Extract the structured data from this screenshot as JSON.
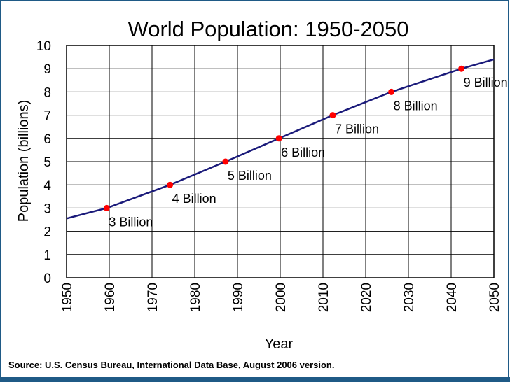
{
  "source_note": "Source: U.S. Census Bureau, International Data Base, August 2006 version.",
  "colors": {
    "line": "#1a1a7a",
    "marker": "#ff0000",
    "grid": "#000000",
    "frame": "#1f5a86"
  },
  "chart_data": {
    "type": "line",
    "title": "World Population: 1950-2050",
    "xlabel": "Year",
    "ylabel": "Population (billions)",
    "xlim": [
      1950,
      2050
    ],
    "ylim": [
      0,
      10
    ],
    "x_ticks": [
      1950,
      1960,
      1970,
      1980,
      1990,
      2000,
      2010,
      2020,
      2030,
      2040,
      2050
    ],
    "y_ticks": [
      0,
      1,
      2,
      3,
      4,
      5,
      6,
      7,
      8,
      9,
      10
    ],
    "grid": true,
    "series": [
      {
        "x": [
          1950,
          1959.4,
          1974.2,
          1987.2,
          1999.7,
          2012.3,
          2026.0,
          2042.4,
          2050
        ],
        "y": [
          2.55,
          3,
          4,
          5,
          6,
          7,
          8,
          9,
          9.4
        ]
      }
    ],
    "milestones": [
      {
        "x": 1959.4,
        "y": 3,
        "label": "3 Billion"
      },
      {
        "x": 1974.2,
        "y": 4,
        "label": "4 Billion"
      },
      {
        "x": 1987.2,
        "y": 5,
        "label": "5 Billion"
      },
      {
        "x": 1999.7,
        "y": 6,
        "label": "6 Billion"
      },
      {
        "x": 2012.3,
        "y": 7,
        "label": "7 Billion"
      },
      {
        "x": 2026.0,
        "y": 8,
        "label": "8 Billion"
      },
      {
        "x": 2042.4,
        "y": 9,
        "label": "9 Billion"
      }
    ]
  }
}
